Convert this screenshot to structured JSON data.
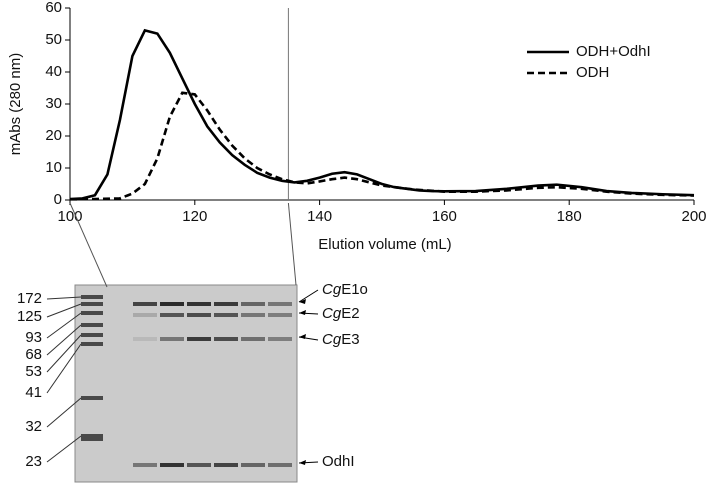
{
  "chart_data": {
    "type": "line",
    "x_label": "Elution volume (mL)",
    "y_label": "mAbs (280 nm)",
    "xlim": [
      100,
      200
    ],
    "xticks": [
      100,
      120,
      140,
      160,
      180,
      200
    ],
    "ylim": [
      0,
      60
    ],
    "yticks": [
      0,
      10,
      20,
      30,
      40,
      50,
      60
    ],
    "legend": "upper right",
    "vline": 135,
    "series": [
      {
        "name": "ODH+OdhI",
        "color": "#000000",
        "dash": "solid",
        "x": [
          100,
          102,
          104,
          106,
          108,
          110,
          112,
          114,
          116,
          118,
          120,
          122,
          124,
          126,
          128,
          130,
          132,
          134,
          136,
          138,
          140,
          142,
          144,
          146,
          148,
          150,
          152,
          154,
          156,
          158,
          160,
          165,
          170,
          175,
          178,
          182,
          186,
          190,
          195,
          200
        ],
        "values": [
          0.3,
          0.5,
          1.5,
          8,
          25,
          45,
          53,
          52,
          46,
          38,
          30,
          23,
          18,
          14,
          11,
          8.5,
          7,
          6,
          5.5,
          6,
          7,
          8.2,
          8.7,
          8,
          6.5,
          5,
          4,
          3.5,
          3,
          2.8,
          2.7,
          2.8,
          3.5,
          4.5,
          4.8,
          4,
          2.8,
          2.2,
          1.8,
          1.5
        ]
      },
      {
        "name": "ODH",
        "color": "#000000",
        "dash": "dashed",
        "x": [
          100,
          104,
          108,
          110,
          112,
          114,
          116,
          118,
          120,
          122,
          124,
          126,
          128,
          130,
          132,
          134,
          136,
          138,
          140,
          142,
          144,
          146,
          148,
          150,
          155,
          160,
          165,
          170,
          175,
          178,
          182,
          186,
          190,
          195,
          200
        ],
        "values": [
          0.2,
          0.3,
          0.5,
          2,
          5,
          13,
          26,
          33.5,
          33,
          28,
          22,
          17,
          13,
          10,
          8,
          6.5,
          5.5,
          5.2,
          5.8,
          6.5,
          7,
          6.5,
          5.5,
          4.5,
          3.3,
          2.6,
          2.6,
          3,
          3.8,
          4,
          3.5,
          2.6,
          2,
          1.6,
          1.4
        ]
      }
    ]
  },
  "gel": {
    "marker_kda": [
      172,
      125,
      93,
      68,
      53,
      41,
      32,
      23
    ],
    "band_labels": [
      [
        "Cg",
        "E1o"
      ],
      [
        "Cg",
        "E2"
      ],
      [
        "Cg",
        "E3"
      ],
      [
        "",
        "OdhI"
      ]
    ]
  }
}
